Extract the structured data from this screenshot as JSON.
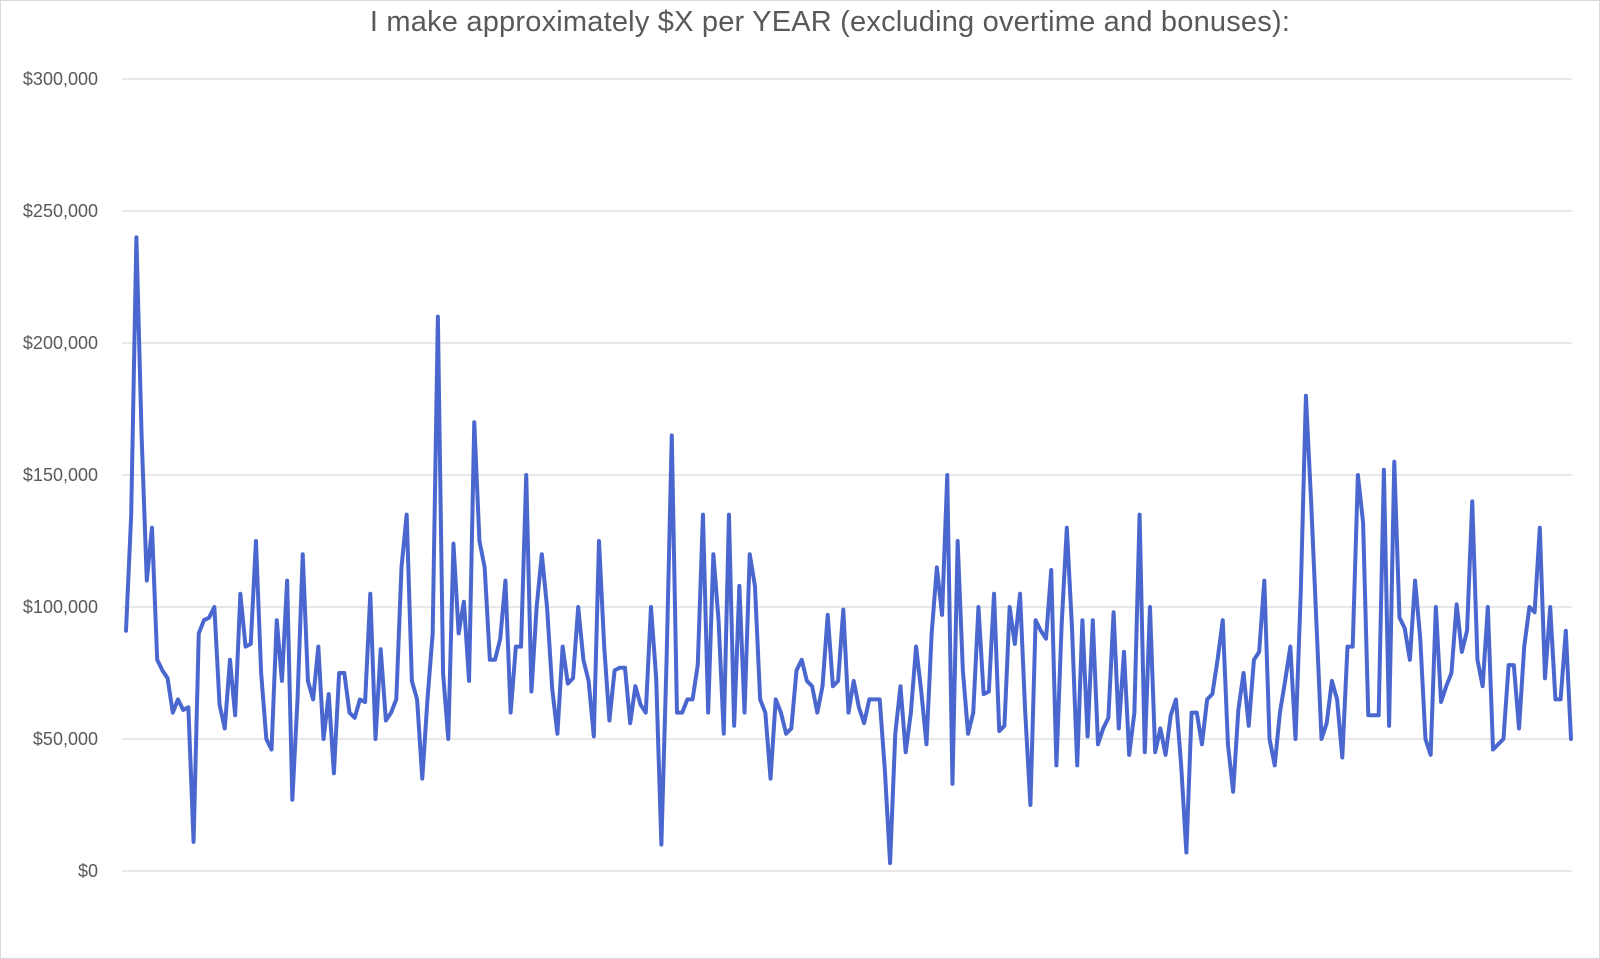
{
  "chart_data": {
    "type": "line",
    "title": "I make approximately  $X per YEAR (excluding overtime and bonuses):",
    "xlabel": "",
    "ylabel": "",
    "ylim": [
      0,
      300000
    ],
    "yticks": [
      {
        "value": 0,
        "label": "$0"
      },
      {
        "value": 50000,
        "label": "$50,000"
      },
      {
        "value": 100000,
        "label": "$100,000"
      },
      {
        "value": 150000,
        "label": "$150,000"
      },
      {
        "value": 200000,
        "label": "$200,000"
      },
      {
        "value": 250000,
        "label": "$250,000"
      },
      {
        "value": 300000,
        "label": "$300,000"
      }
    ],
    "grid": true,
    "legend": "none",
    "series_color": "#4a67cf",
    "series": [
      {
        "values": [
          91000,
          135000,
          240000,
          165000,
          110000,
          130000,
          80000,
          76000,
          73000,
          60000,
          65000,
          61000,
          62000,
          11000,
          90000,
          95000,
          96000,
          100000,
          63000,
          54000,
          80000,
          59000,
          105000,
          85000,
          86000,
          125000,
          75000,
          50000,
          46000,
          95000,
          72000,
          110000,
          27000,
          65000,
          120000,
          72000,
          65000,
          85000,
          50000,
          67000,
          37000,
          75000,
          75000,
          60000,
          58000,
          65000,
          64000,
          105000,
          50000,
          84000,
          57000,
          60000,
          65000,
          115000,
          135000,
          72000,
          65000,
          35000,
          65000,
          90000,
          210000,
          75000,
          50000,
          124000,
          90000,
          102000,
          72000,
          170000,
          125000,
          115000,
          80000,
          80000,
          88000,
          110000,
          60000,
          85000,
          85000,
          150000,
          68000,
          100000,
          120000,
          100000,
          69000,
          52000,
          85000,
          71000,
          73000,
          100000,
          80000,
          72000,
          51000,
          125000,
          85000,
          57000,
          76000,
          77000,
          77000,
          56000,
          70000,
          63000,
          60000,
          100000,
          73000,
          10000,
          80000,
          165000,
          60000,
          60000,
          65000,
          65000,
          78000,
          135000,
          60000,
          120000,
          95000,
          52000,
          135000,
          55000,
          108000,
          60000,
          120000,
          108000,
          65000,
          60000,
          35000,
          65000,
          60000,
          52000,
          54000,
          76000,
          80000,
          72000,
          70000,
          60000,
          70000,
          97000,
          70000,
          72000,
          99000,
          60000,
          72000,
          62000,
          56000,
          65000,
          65000,
          65000,
          38000,
          3000,
          52000,
          70000,
          45000,
          60000,
          85000,
          68000,
          48000,
          90000,
          115000,
          97000,
          150000,
          33000,
          125000,
          76000,
          52000,
          60000,
          100000,
          67000,
          68000,
          105000,
          53000,
          55000,
          100000,
          86000,
          105000,
          60000,
          25000,
          95000,
          91000,
          88000,
          114000,
          40000,
          93000,
          130000,
          92000,
          40000,
          95000,
          51000,
          95000,
          48000,
          54000,
          58000,
          98000,
          54000,
          83000,
          44000,
          60000,
          135000,
          45000,
          100000,
          45000,
          54000,
          44000,
          59000,
          65000,
          40000,
          7000,
          60000,
          60000,
          48000,
          65000,
          67000,
          80000,
          95000,
          48000,
          30000,
          61000,
          75000,
          55000,
          80000,
          83000,
          110000,
          50000,
          40000,
          60000,
          72000,
          85000,
          50000,
          105000,
          180000,
          140000,
          95000,
          50000,
          56000,
          72000,
          65000,
          43000,
          85000,
          85000,
          150000,
          132000,
          59000,
          59000,
          59000,
          152000,
          55000,
          155000,
          96000,
          92000,
          80000,
          110000,
          88000,
          50000,
          44000,
          100000,
          64000,
          70000,
          75000,
          101000,
          83000,
          91000,
          140000,
          80000,
          70000,
          100000,
          46000,
          48000,
          50000,
          78000,
          78000,
          54000,
          85000,
          100000,
          98000,
          130000,
          73000,
          100000,
          65000,
          65000,
          91000,
          50000
        ]
      }
    ]
  }
}
